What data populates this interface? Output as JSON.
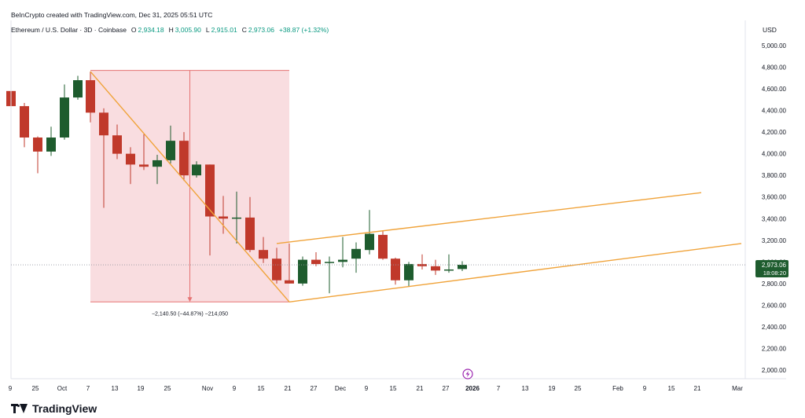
{
  "header": {
    "attribution": "BeInCrypto created with TradingView.com, Dec 31, 2025 05:51 UTC"
  },
  "legend": {
    "symbol": "Ethereum / U.S. Dollar · 3D · Coinbase",
    "open_key": "O",
    "open": "2,934.18",
    "high_key": "H",
    "high": "3,005.90",
    "low_key": "L",
    "low": "2,915.01",
    "close_key": "C",
    "close": "2,973.06",
    "change": "+38.87 (+1.32%)"
  },
  "axis": {
    "unit": "USD"
  },
  "price_label": {
    "value": "2,973.06",
    "countdown": "18:08:20"
  },
  "measure_label": "−2,140.50 (−44.87%) −214,050",
  "brand": {
    "name": "TradingView"
  },
  "colors": {
    "up": "#1e5c2e",
    "down": "#c0392b",
    "channel": "#f0a33a",
    "measure_fill": "#f8d7da",
    "measure_line": "#e57373",
    "price_tag": "#1e5c2e",
    "event": "#9c27b0"
  },
  "icons": {
    "event_marker": "lightning-icon",
    "logo": "tradingview-logo"
  },
  "chart_data": {
    "type": "candlestick",
    "ylim": [
      1900,
      5150
    ],
    "yticks": [
      2000,
      2200,
      2400,
      2600,
      2800,
      3000,
      3200,
      3400,
      3600,
      3800,
      4000,
      4200,
      4400,
      4600,
      4800,
      5000
    ],
    "ytick_labels": [
      "2,000.00",
      "2,200.00",
      "2,400.00",
      "2,600.00",
      "2,800.00",
      "3,000.00",
      "3,200.00",
      "3,400.00",
      "3,600.00",
      "3,800.00",
      "4,000.00",
      "4,200.00",
      "4,400.00",
      "4,600.00",
      "4,800.00",
      "5,000.00"
    ],
    "xticks": [
      {
        "label": "9",
        "t": -1
      },
      {
        "label": "25",
        "t": 31
      },
      {
        "label": "Oct",
        "t": 65
      },
      {
        "label": "7",
        "t": 98
      },
      {
        "label": "13",
        "t": 132
      },
      {
        "label": "19",
        "t": 165
      },
      {
        "label": "25",
        "t": 199
      },
      {
        "label": "Nov",
        "t": 250
      },
      {
        "label": "9",
        "t": 284
      },
      {
        "label": "15",
        "t": 318
      },
      {
        "label": "21",
        "t": 352
      },
      {
        "label": "27",
        "t": 385
      },
      {
        "label": "Dec",
        "t": 419
      },
      {
        "label": "9",
        "t": 452
      },
      {
        "label": "15",
        "t": 486
      },
      {
        "label": "21",
        "t": 520
      },
      {
        "label": "27",
        "t": 553
      },
      {
        "label": "2026",
        "t": 587
      },
      {
        "label": "7",
        "t": 620
      },
      {
        "label": "13",
        "t": 654
      },
      {
        "label": "19",
        "t": 688
      },
      {
        "label": "25",
        "t": 721
      },
      {
        "label": "Feb",
        "t": 772
      },
      {
        "label": "9",
        "t": 806
      },
      {
        "label": "15",
        "t": 840
      },
      {
        "label": "21",
        "t": 873
      },
      {
        "label": "Mar",
        "t": 924
      }
    ],
    "candles": [
      {
        "t": 0,
        "o": 4580,
        "h": 4600,
        "l": 4440,
        "c": 4440
      },
      {
        "t": 17,
        "o": 4440,
        "h": 4470,
        "l": 4060,
        "c": 4150
      },
      {
        "t": 34,
        "o": 4150,
        "h": 4160,
        "l": 3820,
        "c": 4020
      },
      {
        "t": 51,
        "o": 4020,
        "h": 4250,
        "l": 3980,
        "c": 4150
      },
      {
        "t": 68,
        "o": 4150,
        "h": 4640,
        "l": 4130,
        "c": 4520
      },
      {
        "t": 85,
        "o": 4520,
        "h": 4720,
        "l": 4500,
        "c": 4680
      },
      {
        "t": 101,
        "o": 4680,
        "h": 4760,
        "l": 4290,
        "c": 4380
      },
      {
        "t": 118,
        "o": 4380,
        "h": 4420,
        "l": 3500,
        "c": 4170
      },
      {
        "t": 135,
        "o": 4170,
        "h": 4270,
        "l": 3950,
        "c": 4000
      },
      {
        "t": 152,
        "o": 4000,
        "h": 4060,
        "l": 3720,
        "c": 3900
      },
      {
        "t": 169,
        "o": 3900,
        "h": 4180,
        "l": 3850,
        "c": 3880
      },
      {
        "t": 186,
        "o": 3880,
        "h": 3990,
        "l": 3720,
        "c": 3940
      },
      {
        "t": 203,
        "o": 3940,
        "h": 4260,
        "l": 3910,
        "c": 4120
      },
      {
        "t": 220,
        "o": 4120,
        "h": 4200,
        "l": 3750,
        "c": 3800
      },
      {
        "t": 236,
        "o": 3800,
        "h": 3930,
        "l": 3780,
        "c": 3900
      },
      {
        "t": 253,
        "o": 3900,
        "h": 3900,
        "l": 3060,
        "c": 3420
      },
      {
        "t": 270,
        "o": 3420,
        "h": 3610,
        "l": 3260,
        "c": 3400
      },
      {
        "t": 287,
        "o": 3400,
        "h": 3650,
        "l": 3170,
        "c": 3410
      },
      {
        "t": 304,
        "o": 3410,
        "h": 3600,
        "l": 3090,
        "c": 3110
      },
      {
        "t": 321,
        "o": 3110,
        "h": 3230,
        "l": 2990,
        "c": 3030
      },
      {
        "t": 338,
        "o": 3030,
        "h": 3130,
        "l": 2800,
        "c": 2830
      },
      {
        "t": 354,
        "o": 2830,
        "h": 3170,
        "l": 2800,
        "c": 2800
      },
      {
        "t": 371,
        "o": 2800,
        "h": 3050,
        "l": 2780,
        "c": 3020
      },
      {
        "t": 388,
        "o": 3020,
        "h": 3090,
        "l": 2960,
        "c": 2980
      },
      {
        "t": 405,
        "o": 2990,
        "h": 3050,
        "l": 2710,
        "c": 3000
      },
      {
        "t": 422,
        "o": 3000,
        "h": 3230,
        "l": 2950,
        "c": 3020
      },
      {
        "t": 439,
        "o": 3030,
        "h": 3180,
        "l": 2900,
        "c": 3120
      },
      {
        "t": 456,
        "o": 3110,
        "h": 3480,
        "l": 3070,
        "c": 3260
      },
      {
        "t": 473,
        "o": 3250,
        "h": 3290,
        "l": 3020,
        "c": 3030
      },
      {
        "t": 489,
        "o": 3030,
        "h": 3040,
        "l": 2790,
        "c": 2830
      },
      {
        "t": 506,
        "o": 2830,
        "h": 3000,
        "l": 2770,
        "c": 2980
      },
      {
        "t": 523,
        "o": 2980,
        "h": 3070,
        "l": 2930,
        "c": 2960
      },
      {
        "t": 540,
        "o": 2960,
        "h": 3020,
        "l": 2880,
        "c": 2920
      },
      {
        "t": 557,
        "o": 2920,
        "h": 3070,
        "l": 2900,
        "c": 2930
      },
      {
        "t": 574,
        "o": 2934.18,
        "h": 3005.9,
        "l": 2915.01,
        "c": 2973.06
      }
    ],
    "measure_box": {
      "t0": 101,
      "t1": 354,
      "top": 4770,
      "bottom": 2630
    },
    "channel_lines": [
      {
        "t0": 101,
        "p0": 4760,
        "t1": 354,
        "p1": 2630
      },
      {
        "t0": 338,
        "p0": 3170,
        "t1": 878,
        "p1": 3640
      },
      {
        "t0": 354,
        "p0": 2630,
        "t1": 929,
        "p1": 3170
      }
    ],
    "current_price": 2973.06,
    "event_marker_t": 574
  }
}
